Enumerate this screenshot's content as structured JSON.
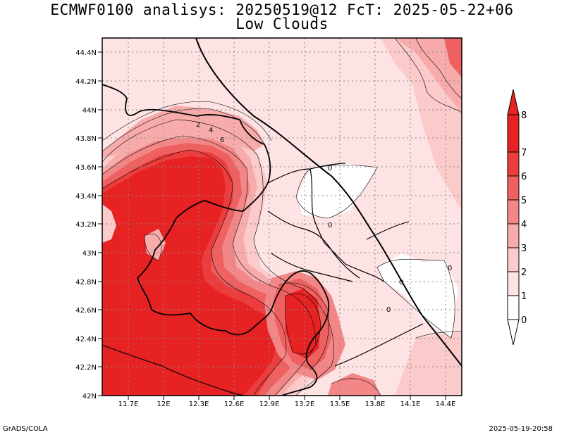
{
  "title": "ECMWF0100 analisys: 20250519@12 FcT: 2025-05-22+06",
  "subtitle": "Low Clouds",
  "footer_left": "GrADS/COLA",
  "footer_right": "2025-05-19-20:58",
  "map": {
    "lon_range": [
      11.45,
      14.5
    ],
    "lat_range": [
      42.0,
      44.5
    ],
    "x_ticks": [
      "11.7E",
      "12E",
      "12.3E",
      "12.6E",
      "12.9E",
      "13.2E",
      "13.5E",
      "13.8E",
      "14.1E",
      "14.4E"
    ],
    "y_ticks": [
      "42N",
      "42.2N",
      "42.4N",
      "42.6N",
      "42.8N",
      "43N",
      "43.2N",
      "43.4N",
      "43.6N",
      "43.8N",
      "44N",
      "44.2N",
      "44.4N"
    ],
    "contour_labels": [
      "0",
      "0",
      "0",
      "0",
      "0",
      "2",
      "4",
      "6"
    ]
  },
  "colorbar": {
    "labels": [
      "0",
      "1",
      "2",
      "3",
      "4",
      "5",
      "6",
      "7",
      "8"
    ],
    "colors": [
      "#ffffff",
      "#fde3e3",
      "#fbcaca",
      "#f8abab",
      "#f38787",
      "#ef6161",
      "#eb3d3d",
      "#e62222"
    ]
  }
}
